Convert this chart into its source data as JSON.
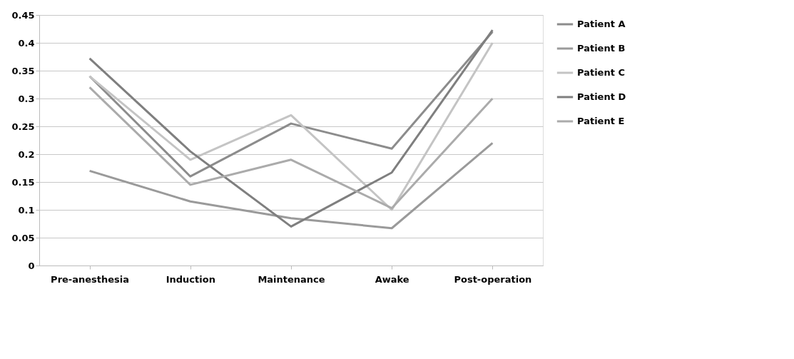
{
  "chart_data": {
    "type": "line",
    "categories": [
      "Pre-anesthesia",
      "Induction",
      "Maintenance",
      "Awake",
      "Post-operation"
    ],
    "series": [
      {
        "name": "Patient A",
        "color": "#8c8c8c",
        "values": [
          0.34,
          0.16,
          0.255,
          0.21,
          0.42
        ]
      },
      {
        "name": "Patient B",
        "color": "#9a9a9a",
        "values": [
          0.17,
          0.115,
          0.085,
          0.067,
          0.22
        ]
      },
      {
        "name": "Patient C",
        "color": "#c4c4c4",
        "values": [
          0.34,
          0.19,
          0.27,
          0.1,
          0.4
        ]
      },
      {
        "name": "Patient D",
        "color": "#7f7f7f",
        "values": [
          0.372,
          0.205,
          0.07,
          0.167,
          0.423
        ]
      },
      {
        "name": "Patient E",
        "color": "#ababab",
        "values": [
          0.32,
          0.145,
          0.19,
          0.103,
          0.3
        ]
      }
    ],
    "ylim": [
      0,
      0.45
    ],
    "yticks": [
      0,
      0.05,
      0.1,
      0.15,
      0.2,
      0.25,
      0.3,
      0.35,
      0.4,
      0.45
    ],
    "grid": "y",
    "legend": "right",
    "marker": "none",
    "line_style": "solid"
  }
}
